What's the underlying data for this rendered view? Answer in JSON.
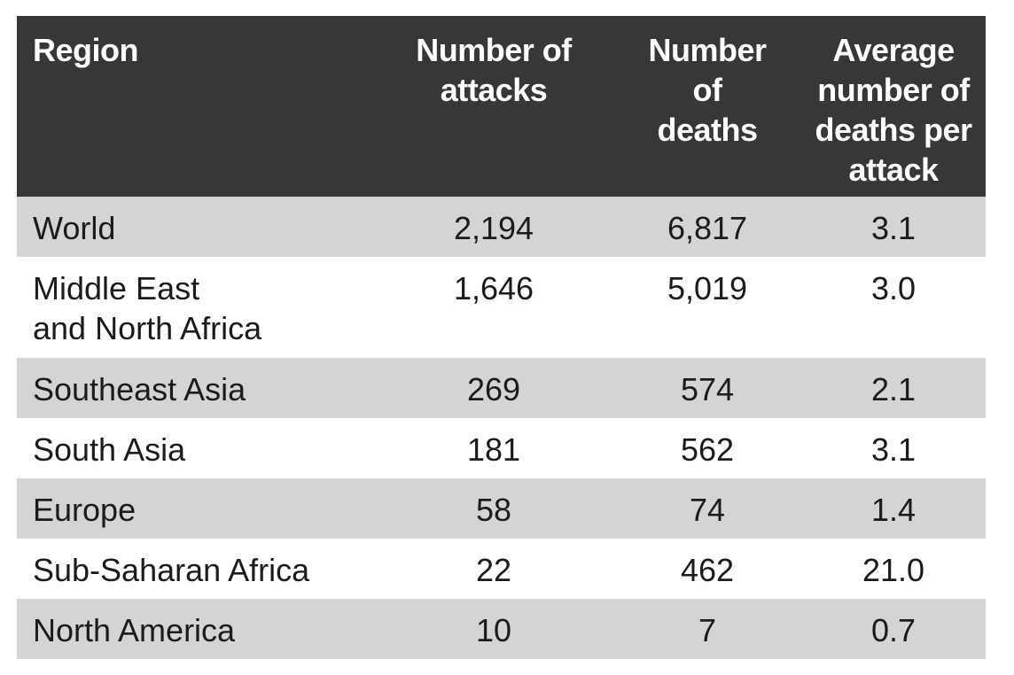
{
  "table": {
    "headers": {
      "region": "Region",
      "attacks": "Number of\nattacks",
      "deaths": "Number\nof\ndeaths",
      "average": "Average\nnumber of\ndeaths per\nattack"
    },
    "rows": [
      {
        "region": "World",
        "attacks": "2,194",
        "deaths": "6,817",
        "average": "3.1"
      },
      {
        "region": "Middle East\nand North Africa",
        "attacks": "1,646",
        "deaths": "5,019",
        "average": "3.0"
      },
      {
        "region": "Southeast Asia",
        "attacks": "269",
        "deaths": "574",
        "average": "2.1"
      },
      {
        "region": "South Asia",
        "attacks": "181",
        "deaths": "562",
        "average": "3.1"
      },
      {
        "region": "Europe",
        "attacks": "58",
        "deaths": "74",
        "average": "1.4"
      },
      {
        "region": "Sub-Saharan Africa",
        "attacks": "22",
        "deaths": "462",
        "average": "21.0"
      },
      {
        "region": "North America",
        "attacks": "10",
        "deaths": "7",
        "average": "0.7"
      }
    ]
  },
  "colors": {
    "header_bg": "#383736",
    "header_text": "#ffffff",
    "row_shaded": "#d4d4d4",
    "row_plain": "#ffffff",
    "body_text": "#1b1b1b"
  }
}
